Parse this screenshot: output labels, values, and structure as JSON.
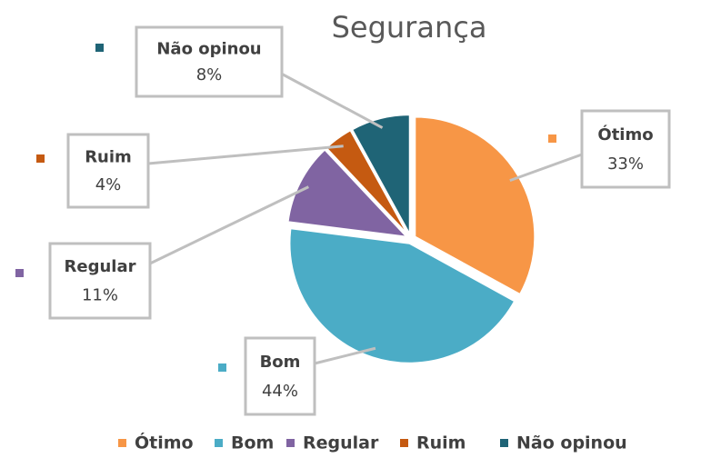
{
  "chart_data": {
    "type": "pie",
    "title": "Segurança",
    "categories": [
      "Ótimo",
      "Bom",
      "Regular",
      "Ruim",
      "Não opinou"
    ],
    "values": [
      33,
      44,
      11,
      4,
      8
    ],
    "value_labels": [
      "33%",
      "44%",
      "11%",
      "4%",
      "8%"
    ],
    "colors": [
      "#f79646",
      "#4bacc6",
      "#8064a2",
      "#c55a11",
      "#1f6476"
    ],
    "legend": "bottom"
  }
}
